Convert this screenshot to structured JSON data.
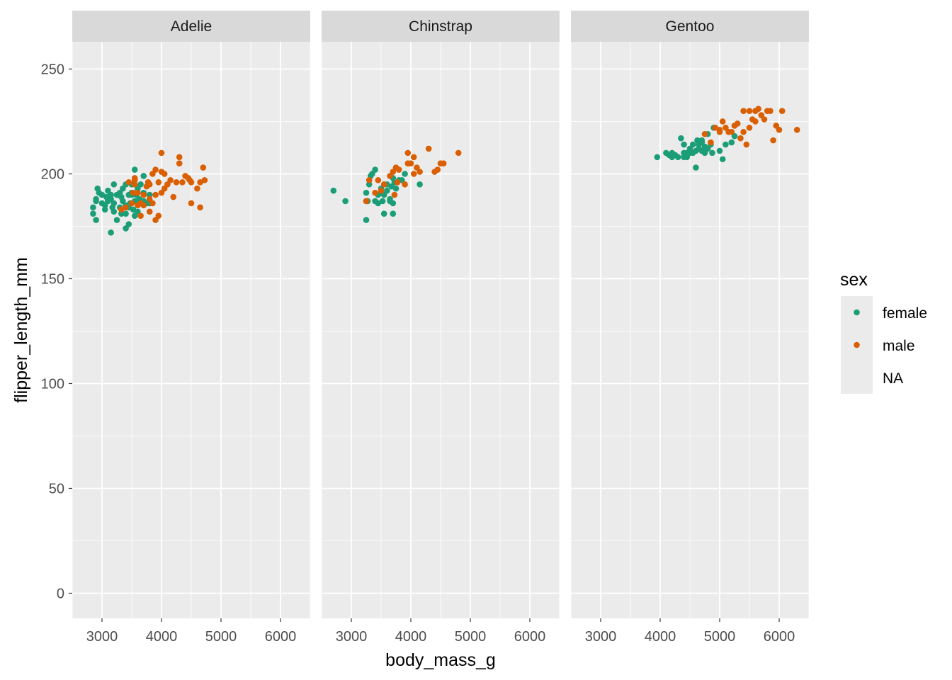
{
  "chart_data": {
    "type": "scatter",
    "xlabel": "body_mass_g",
    "ylabel": "flipper_length_mm",
    "xlim": [
      2500,
      6500
    ],
    "ylim": [
      -12,
      263
    ],
    "x_ticks": [
      3000,
      4000,
      5000,
      6000
    ],
    "y_ticks": [
      0,
      50,
      100,
      150,
      200,
      250
    ],
    "grid": true,
    "legend": {
      "title": "sex",
      "placement": "right",
      "entries": [
        "female",
        "male",
        "NA"
      ]
    },
    "colors": {
      "female": "#1b9e77",
      "male": "#d95f02",
      "panel": "#ebebeb",
      "strip": "#d9d9d9",
      "grid": "#ffffff"
    },
    "panels": [
      {
        "name": "Adelie",
        "series": [
          {
            "name": "female",
            "points": [
              [
                2850,
                184
              ],
              [
                2850,
                181
              ],
              [
                2900,
                178
              ],
              [
                2900,
                187
              ],
              [
                2900,
                188
              ],
              [
                2925,
                193
              ],
              [
                2950,
                191
              ],
              [
                3000,
                190
              ],
              [
                3000,
                186
              ],
              [
                3050,
                185
              ],
              [
                3050,
                183
              ],
              [
                3075,
                189
              ],
              [
                3100,
                192
              ],
              [
                3100,
                187
              ],
              [
                3150,
                190
              ],
              [
                3150,
                188
              ],
              [
                3150,
                172
              ],
              [
                3175,
                184
              ],
              [
                3200,
                195
              ],
              [
                3200,
                186
              ],
              [
                3200,
                182
              ],
              [
                3250,
                190
              ],
              [
                3250,
                178
              ],
              [
                3275,
                190
              ],
              [
                3300,
                191
              ],
              [
                3300,
                184
              ],
              [
                3325,
                189
              ],
              [
                3325,
                181
              ],
              [
                3350,
                193
              ],
              [
                3350,
                187
              ],
              [
                3400,
                195
              ],
              [
                3400,
                185
              ],
              [
                3400,
                181
              ],
              [
                3400,
                174
              ],
              [
                3450,
                190
              ],
              [
                3450,
                184
              ],
              [
                3450,
                176
              ],
              [
                3475,
                186
              ],
              [
                3500,
                195
              ],
              [
                3500,
                191
              ],
              [
                3500,
                190
              ],
              [
                3525,
                183
              ],
              [
                3550,
                202
              ],
              [
                3550,
                187
              ],
              [
                3550,
                180
              ],
              [
                3575,
                190
              ],
              [
                3600,
                193
              ],
              [
                3600,
                182
              ],
              [
                3625,
                188
              ],
              [
                3650,
                195
              ],
              [
                3650,
                187
              ],
              [
                3700,
                199
              ],
              [
                3700,
                191
              ],
              [
                3700,
                187
              ],
              [
                3750,
                186
              ],
              [
                3800,
                186
              ],
              [
                3800,
                190
              ]
            ]
          },
          {
            "name": "male",
            "points": [
              [
                3325,
                183
              ],
              [
                3400,
                184
              ],
              [
                3450,
                196
              ],
              [
                3500,
                186
              ],
              [
                3525,
                191
              ],
              [
                3550,
                197
              ],
              [
                3550,
                195
              ],
              [
                3550,
                198
              ],
              [
                3600,
                185
              ],
              [
                3600,
                191
              ],
              [
                3650,
                180
              ],
              [
                3650,
                186
              ],
              [
                3700,
                190
              ],
              [
                3700,
                185
              ],
              [
                3750,
                194
              ],
              [
                3775,
                196
              ],
              [
                3800,
                195
              ],
              [
                3800,
                188
              ],
              [
                3800,
                182
              ],
              [
                3850,
                200
              ],
              [
                3850,
                186
              ],
              [
                3900,
                178
              ],
              [
                3900,
                202
              ],
              [
                3900,
                190
              ],
              [
                3950,
                180
              ],
              [
                3950,
                196
              ],
              [
                4000,
                210
              ],
              [
                4000,
                201
              ],
              [
                4000,
                191
              ],
              [
                4050,
                200
              ],
              [
                4050,
                193
              ],
              [
                4100,
                195
              ],
              [
                4150,
                197
              ],
              [
                4200,
                189
              ],
              [
                4250,
                196
              ],
              [
                4300,
                208
              ],
              [
                4300,
                205
              ],
              [
                4350,
                196
              ],
              [
                4400,
                199
              ],
              [
                4450,
                198
              ],
              [
                4475,
                197
              ],
              [
                4500,
                196
              ],
              [
                4500,
                186
              ],
              [
                4600,
                193
              ],
              [
                4650,
                184
              ],
              [
                4650,
                196
              ],
              [
                4700,
                203
              ],
              [
                4725,
                197
              ]
            ]
          }
        ]
      },
      {
        "name": "Chinstrap",
        "series": [
          {
            "name": "female",
            "points": [
              [
                2700,
                192
              ],
              [
                2900,
                187
              ],
              [
                3250,
                191
              ],
              [
                3250,
                178
              ],
              [
                3275,
                187
              ],
              [
                3300,
                195
              ],
              [
                3325,
                199
              ],
              [
                3350,
                200
              ],
              [
                3400,
                202
              ],
              [
                3400,
                187
              ],
              [
                3450,
                190
              ],
              [
                3450,
                186
              ],
              [
                3500,
                191
              ],
              [
                3500,
                193
              ],
              [
                3525,
                187
              ],
              [
                3550,
                190
              ],
              [
                3550,
                181
              ],
              [
                3600,
                195
              ],
              [
                3600,
                192
              ],
              [
                3650,
                188
              ],
              [
                3650,
                187
              ],
              [
                3675,
                194
              ],
              [
                3700,
                198
              ],
              [
                3700,
                186
              ],
              [
                3700,
                181
              ],
              [
                3725,
                196
              ],
              [
                3750,
                193
              ],
              [
                3800,
                197
              ],
              [
                3850,
                197
              ],
              [
                3900,
                200
              ],
              [
                4150,
                195
              ]
            ]
          },
          {
            "name": "male",
            "points": [
              [
                3250,
                187
              ],
              [
                3300,
                197
              ],
              [
                3400,
                191
              ],
              [
                3450,
                197
              ],
              [
                3500,
                192
              ],
              [
                3550,
                195
              ],
              [
                3650,
                199
              ],
              [
                3700,
                201
              ],
              [
                3725,
                190
              ],
              [
                3750,
                203
              ],
              [
                3775,
                196
              ],
              [
                3800,
                202
              ],
              [
                3900,
                195
              ],
              [
                3950,
                205
              ],
              [
                3950,
                210
              ],
              [
                4000,
                205
              ],
              [
                4050,
                208
              ],
              [
                4050,
                200
              ],
              [
                4100,
                203
              ],
              [
                4150,
                201
              ],
              [
                4300,
                212
              ],
              [
                4400,
                201
              ],
              [
                4450,
                202
              ],
              [
                4500,
                205
              ],
              [
                4550,
                205
              ],
              [
                4800,
                210
              ]
            ]
          }
        ]
      },
      {
        "name": "Gentoo",
        "series": [
          {
            "name": "female",
            "points": [
              [
                3950,
                208
              ],
              [
                4100,
                210
              ],
              [
                4150,
                209
              ],
              [
                4200,
                210
              ],
              [
                4200,
                208
              ],
              [
                4250,
                209
              ],
              [
                4300,
                208
              ],
              [
                4350,
                217
              ],
              [
                4400,
                214
              ],
              [
                4400,
                210
              ],
              [
                4400,
                208
              ],
              [
                4450,
                210
              ],
              [
                4450,
                208
              ],
              [
                4500,
                212
              ],
              [
                4500,
                210
              ],
              [
                4550,
                214
              ],
              [
                4550,
                210
              ],
              [
                4600,
                211
              ],
              [
                4600,
                203
              ],
              [
                4625,
                216
              ],
              [
                4650,
                214
              ],
              [
                4650,
                212
              ],
              [
                4700,
                216
              ],
              [
                4700,
                211
              ],
              [
                4700,
                215
              ],
              [
                4750,
                213
              ],
              [
                4750,
                210
              ],
              [
                4800,
                219
              ],
              [
                4800,
                212
              ],
              [
                4850,
                214
              ],
              [
                4875,
                210
              ],
              [
                4900,
                222
              ],
              [
                5000,
                211
              ],
              [
                5050,
                207
              ],
              [
                5100,
                214
              ],
              [
                5200,
                215
              ],
              [
                5250,
                218
              ]
            ]
          },
          {
            "name": "male",
            "points": [
              [
                4750,
                219
              ],
              [
                4850,
                215
              ],
              [
                4925,
                222
              ],
              [
                5000,
                221
              ],
              [
                5000,
                220
              ],
              [
                5050,
                225
              ],
              [
                5100,
                222
              ],
              [
                5150,
                220
              ],
              [
                5200,
                220
              ],
              [
                5250,
                223
              ],
              [
                5300,
                224
              ],
              [
                5350,
                217
              ],
              [
                5400,
                230
              ],
              [
                5400,
                220
              ],
              [
                5450,
                214
              ],
              [
                5500,
                230
              ],
              [
                5500,
                222
              ],
              [
                5550,
                226
              ],
              [
                5600,
                225
              ],
              [
                5600,
                230
              ],
              [
                5650,
                231
              ],
              [
                5700,
                228
              ],
              [
                5750,
                226
              ],
              [
                5800,
                230
              ],
              [
                5850,
                230
              ],
              [
                5900,
                216
              ],
              [
                5950,
                223
              ],
              [
                6000,
                221
              ],
              [
                6050,
                230
              ],
              [
                6300,
                221
              ]
            ]
          }
        ]
      }
    ]
  }
}
